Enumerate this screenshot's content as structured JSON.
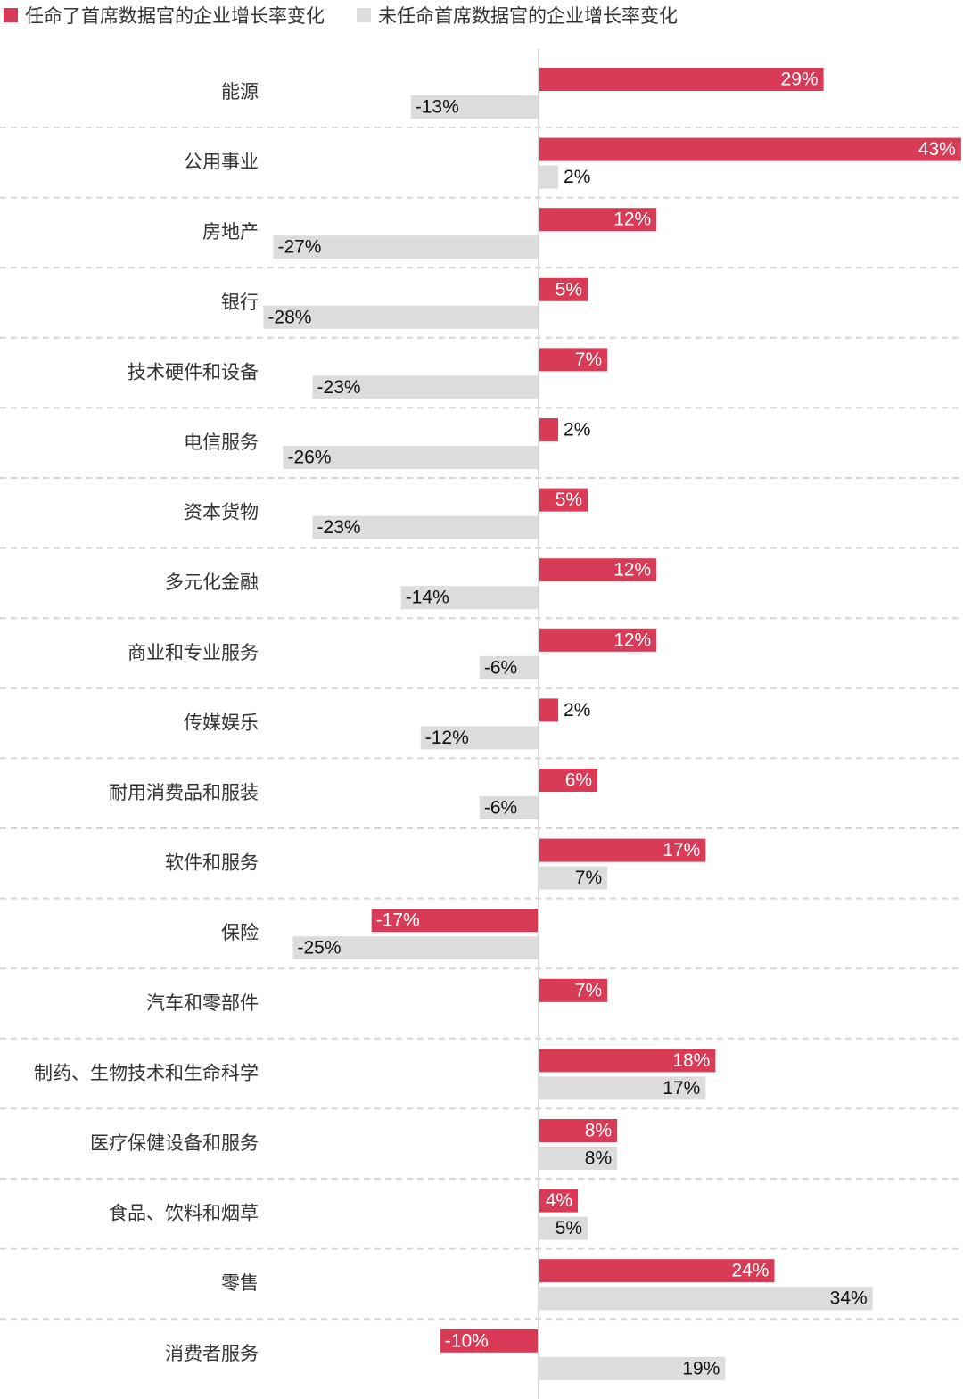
{
  "chart_data": {
    "type": "bar",
    "orientation": "horizontal",
    "title": "",
    "xlabel": "",
    "ylabel": "",
    "legend_position": "top-left",
    "grid": false,
    "unit": "%",
    "categories": [
      "能源",
      "公用事业",
      "房地产",
      "银行",
      "技术硬件和设备",
      "电信服务",
      "资本货物",
      "多元化金融",
      "商业和专业服务",
      "传媒娱乐",
      "耐用消费品和服装",
      "软件和服务",
      "保险",
      "汽车和零部件",
      "制药、生物技术和生命科学",
      "医疗保健设备和服务",
      "食品、饮料和烟草",
      "零售",
      "消费者服务"
    ],
    "series": [
      {
        "name": "任命了首席数据官的企业增长率变化",
        "color": "#d93a55",
        "values": [
          29,
          43,
          12,
          5,
          7,
          2,
          5,
          12,
          12,
          2,
          6,
          17,
          -17,
          7,
          18,
          8,
          4,
          24,
          -10
        ]
      },
      {
        "name": "未任命首席数据官的企业增长率变化",
        "color": "#dcdcdc",
        "values": [
          -13,
          2,
          -27,
          -28,
          -23,
          -26,
          -23,
          -14,
          -6,
          -12,
          -6,
          7,
          -25,
          null,
          17,
          8,
          5,
          34,
          19
        ]
      }
    ]
  }
}
